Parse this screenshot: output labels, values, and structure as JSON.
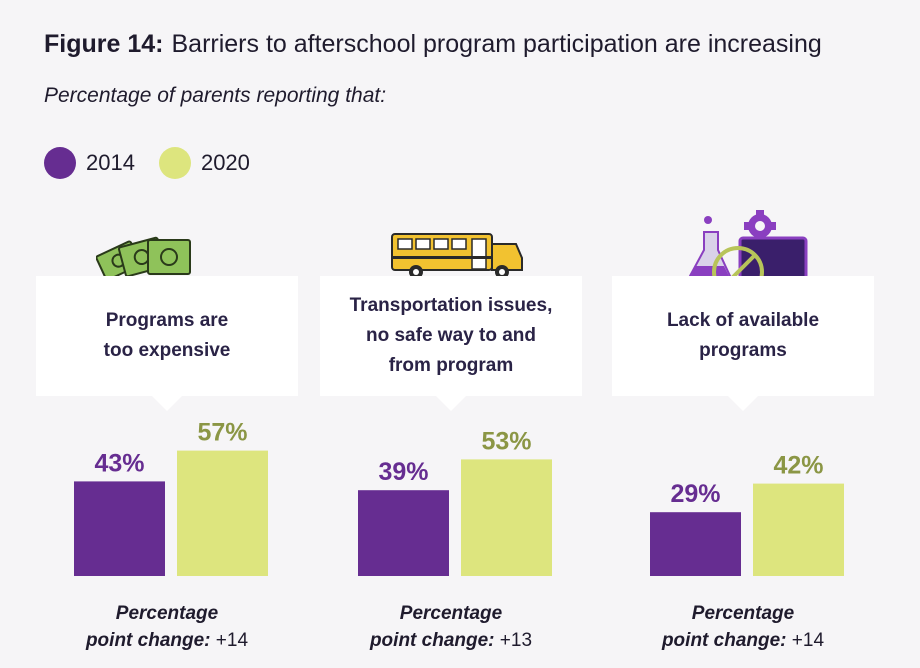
{
  "header": {
    "figure_label": "Figure 14:",
    "title": "Barriers to afterschool program participation are increasing",
    "subtitle": "Percentage of parents reporting that:"
  },
  "legend": [
    {
      "label": "2014",
      "color": "#662d91"
    },
    {
      "label": "2020",
      "color": "#dde57e"
    }
  ],
  "colors": {
    "bar_2014": "#662d91",
    "bar_2020": "#dde57e",
    "label_2014": "#662d91",
    "label_2020": "#8b9645"
  },
  "panels": [
    {
      "label": "Programs are\ntoo expensive",
      "icon": "money-icon",
      "v2014": "43%",
      "v2020": "57%",
      "change_label": "Percentage",
      "change_label2": "point change:",
      "change": "+14"
    },
    {
      "label": "Transportation issues,\nno safe way to and\nfrom program",
      "icon": "school-bus-icon",
      "v2014": "39%",
      "v2020": "53%",
      "change_label": "Percentage",
      "change_label2": "point change:",
      "change": "+13"
    },
    {
      "label": "Lack of available\nprograms",
      "icon": "science-gear-laptop-icon",
      "v2014": "29%",
      "v2020": "42%",
      "change_label": "Percentage",
      "change_label2": "point change:",
      "change": "+14"
    }
  ],
  "chart_data": {
    "type": "bar",
    "title": "Barriers to afterschool program participation are increasing",
    "subtitle": "Percentage of parents reporting that:",
    "categories": [
      "Programs are too expensive",
      "Transportation issues, no safe way to and from program",
      "Lack of available programs"
    ],
    "series": [
      {
        "name": "2014",
        "values": [
          43,
          39,
          29
        ]
      },
      {
        "name": "2020",
        "values": [
          57,
          53,
          42
        ]
      }
    ],
    "ylim": [
      0,
      100
    ],
    "grid": false,
    "legend_position": "top-left"
  }
}
